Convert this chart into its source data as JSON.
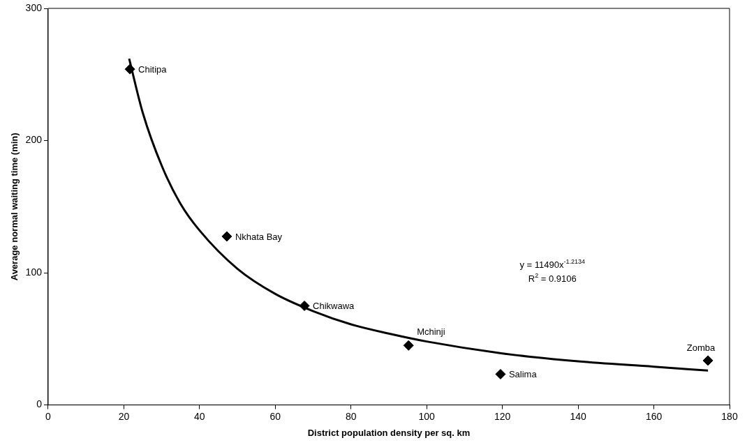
{
  "chart_data": {
    "type": "scatter",
    "xlabel": "District population density per sq. km",
    "ylabel": "Average normal waiting time (min)",
    "xlim": [
      0,
      180
    ],
    "xticks": [
      0,
      20,
      40,
      60,
      80,
      100,
      120,
      140,
      160,
      180
    ],
    "ylim": [
      0,
      300
    ],
    "yticks": [
      0,
      100,
      200,
      300
    ],
    "grid": false,
    "legend": false,
    "marker": "diamond",
    "series": [
      {
        "color": "#000000",
        "x": [
          21.6,
          47.2,
          67.7,
          95.2,
          119.5,
          174.3
        ],
        "values": [
          254,
          127.5,
          75,
          45,
          23.3,
          33.6
        ]
      },
      {
        "type": "line",
        "color": "#000000",
        "marker": "none",
        "x": [
          21.4,
          25,
          30,
          35,
          40,
          50,
          60,
          70,
          80,
          90,
          100,
          120,
          140,
          160,
          174.3
        ],
        "values": [
          262,
          221,
          181,
          152,
          132,
          103,
          84,
          71,
          61,
          54,
          48,
          39,
          33,
          29,
          26
        ]
      }
    ],
    "annotations": [
      {
        "text": "Chitipa",
        "x": 21.6,
        "y": 254
      },
      {
        "text": "Nkhata Bay",
        "x": 47.2,
        "y": 127.5
      },
      {
        "text": "Chikwawa",
        "x": 67.7,
        "y": 75
      },
      {
        "text": "Mchinji",
        "x": 95.2,
        "y": 45
      },
      {
        "text": "Salima",
        "x": 119.5,
        "y": 23.3
      },
      {
        "text": "Zomba",
        "x": 174.3,
        "y": 33.6
      },
      "y = 11490x$^{-1.2134}$",
      "R$^{2}$ = 0.9106"
    ]
  }
}
